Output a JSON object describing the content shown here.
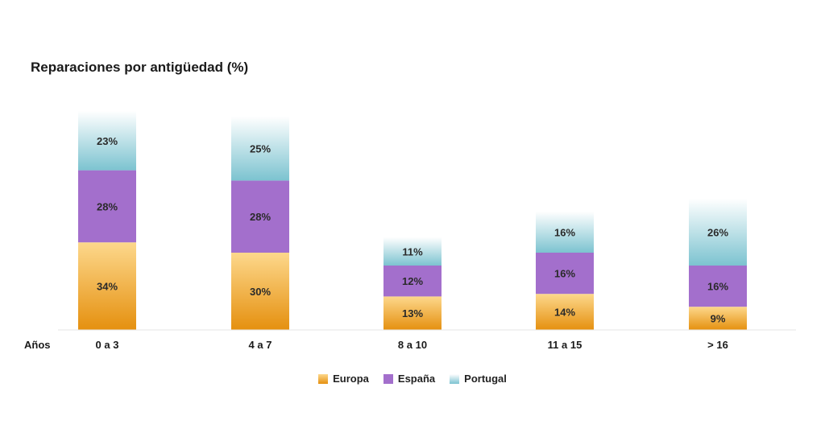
{
  "chart_data": {
    "type": "bar",
    "stacked": true,
    "title": "Reparaciones por antigüedad (%)",
    "xlabel": "Años",
    "categories": [
      "0 a 3",
      "4 a 7",
      "8 a 10",
      "11 a 15",
      "> 16"
    ],
    "series": [
      {
        "name": "Europa",
        "values": [
          34,
          30,
          13,
          14,
          9
        ],
        "color_top": "#fdd88c",
        "color_bottom": "#e5900f"
      },
      {
        "name": "España",
        "values": [
          28,
          28,
          12,
          16,
          16
        ],
        "color_top": "#a36fcc",
        "color_bottom": "#a36fcc"
      },
      {
        "name": "Portugal",
        "values": [
          23,
          25,
          11,
          16,
          26
        ],
        "color_top": "#ffffff",
        "color_bottom": "#7cc3d0"
      }
    ],
    "value_suffix": "%",
    "legend_position": "bottom-center",
    "grid": false
  }
}
